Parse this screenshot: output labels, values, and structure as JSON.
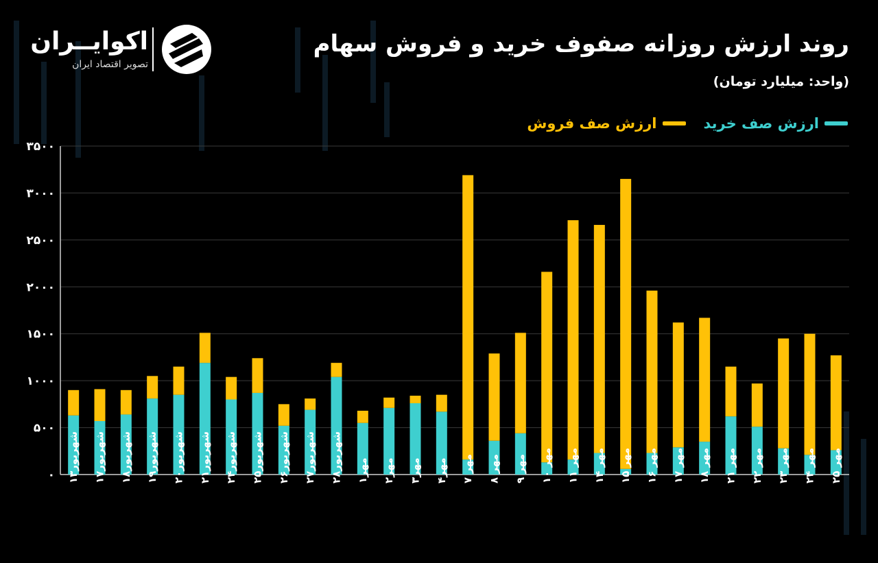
{
  "header": {
    "title": "روند ارزش روزانه صفوف خرید و فروش سهام",
    "unit": "(واحد: میلیارد تومان)"
  },
  "brand": {
    "name": "اکوایــران",
    "tagline": "تصویر اقتصاد ایران",
    "mark_icon": "ecoiran-logo-icon"
  },
  "colors": {
    "buy": "#3ecfcf",
    "sell": "#ffc107",
    "background": "#000000",
    "grid": "#3a3a3a"
  },
  "chart_data": {
    "type": "bar",
    "stacked": true,
    "categories": [
      "شهریور۱۳",
      "شهریور۱۷",
      "شهریور۱۸",
      "شهریور۱۹",
      "شهریور۲۰",
      "شهریور۲۱",
      "شهریور۲۴",
      "شهریور۲۵",
      "شهریور۲۶",
      "شهریور۲۷",
      "شهریور۲۸",
      "مهر۱",
      "مهر۲",
      "مهر۳",
      "مهر۴",
      "مهر ۷",
      "مهر ۸",
      "مهر ۹",
      "مهر ۱۰",
      "مهر ۱۱",
      "مهر ۱۴",
      "مهر ۱۵",
      "مهر ۱۶",
      "مهر ۱۷",
      "مهر ۱۸",
      "مهر ۲۱",
      "مهر ۲۲",
      "مهر ۲۳",
      "مهر ۲۴",
      "مهر ۲۵"
    ],
    "series": [
      {
        "name": "ارزش صف خرید",
        "color": "#3ecfcf",
        "values": [
          630,
          570,
          640,
          810,
          850,
          1190,
          800,
          870,
          520,
          690,
          1040,
          550,
          710,
          760,
          670,
          160,
          360,
          440,
          130,
          160,
          230,
          60,
          230,
          290,
          350,
          620,
          510,
          280,
          210,
          260
        ]
      },
      {
        "name": "ارزش صف فروش",
        "color": "#ffc107",
        "values": [
          270,
          340,
          260,
          240,
          300,
          320,
          240,
          370,
          230,
          120,
          150,
          130,
          110,
          80,
          180,
          3030,
          930,
          1070,
          2030,
          2550,
          2430,
          3090,
          1730,
          1330,
          1320,
          530,
          460,
          1170,
          1290,
          1010
        ]
      }
    ],
    "ylim": [
      0,
      3500
    ],
    "yticks": [
      0,
      500,
      1000,
      1500,
      2000,
      2500,
      3000,
      3500
    ],
    "ytick_labels": [
      "۰",
      "۵۰۰",
      "۱۰۰۰",
      "۱۵۰۰",
      "۲۰۰۰",
      "۲۵۰۰",
      "۳۰۰۰",
      "۳۵۰۰"
    ],
    "grid": true,
    "legend": "top-right"
  }
}
